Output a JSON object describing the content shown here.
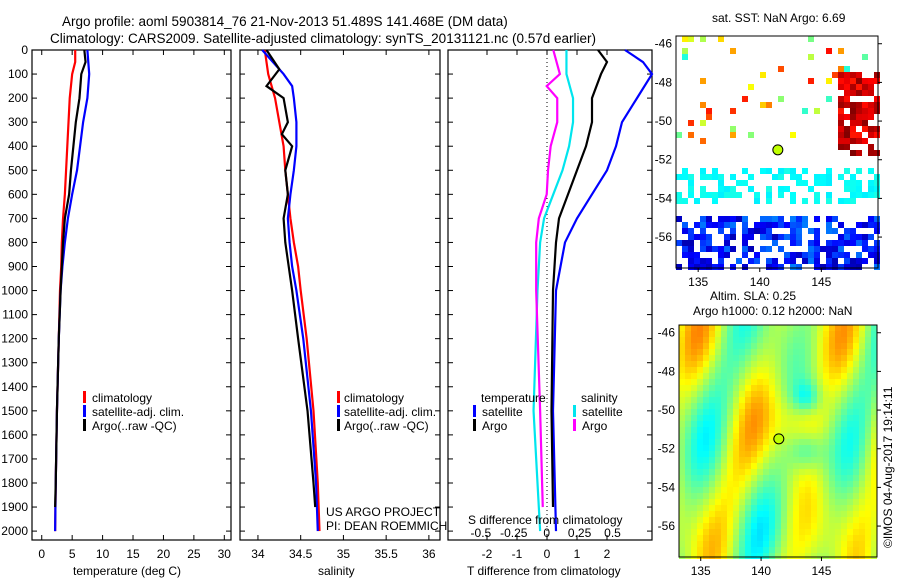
{
  "title_line1": "Argo profile: aoml 5903814_76 21-Nov-2013 51.489S 141.468E (DM data)",
  "title_line2": "Climatology: CARS2009. Satellite-adjusted climatology: synTS_20131121.nc (0.57d earlier)",
  "colors": {
    "clim": "#ff0000",
    "sat": "#0000ff",
    "argo": "#000000",
    "s_sat": "#00e5ee",
    "s_argo": "#ff00ff"
  },
  "depth_ticks": [
    0,
    100,
    200,
    300,
    400,
    500,
    600,
    700,
    800,
    900,
    1000,
    1100,
    1200,
    1300,
    1400,
    1500,
    1600,
    1700,
    1800,
    1900,
    2000
  ],
  "chart_data": [
    {
      "type": "line",
      "name": "temperature",
      "xlabel": "temperature (deg C)",
      "xlim": [
        -1.6,
        31.1
      ],
      "ylim": [
        2037,
        0
      ],
      "xticks": [
        0,
        5,
        10,
        15,
        20,
        25,
        30
      ],
      "legend": [
        "climatology",
        "satellite-adj. clim.",
        "Argo(..raw -QC)"
      ],
      "series": [
        {
          "name": "climatology",
          "key": "clim",
          "depth": [
            0,
            50,
            100,
            200,
            300,
            400,
            500,
            600,
            700,
            800,
            900,
            1000,
            1200,
            1500,
            1800,
            2000
          ],
          "values": [
            5.5,
            5.5,
            5,
            4.6,
            4.4,
            4.2,
            4,
            3.8,
            3.5,
            3.3,
            3.2,
            3.0,
            2.8,
            2.5,
            2.3,
            2.2
          ]
        },
        {
          "name": "satellite-adj. clim.",
          "key": "sat",
          "depth": [
            0,
            100,
            200,
            300,
            400,
            500,
            600,
            700,
            800,
            900,
            1000,
            1200,
            1500,
            1800,
            2000
          ],
          "values": [
            7.5,
            7.8,
            7.5,
            6.8,
            6.3,
            5.8,
            5,
            4.3,
            3.8,
            3.4,
            3.1,
            2.8,
            2.5,
            2.3,
            2.2
          ]
        },
        {
          "name": "Argo(..raw -QC)",
          "key": "argo",
          "depth": [
            0,
            50,
            100,
            200,
            300,
            400,
            500,
            600,
            700,
            800,
            900,
            1000,
            1200,
            1500,
            1800,
            1900
          ],
          "values": [
            7,
            7.2,
            6.5,
            6.2,
            5.6,
            5.2,
            4.8,
            4.5,
            3.8,
            3.5,
            3.3,
            3.1,
            2.8,
            2.5,
            2.3,
            2.2
          ]
        }
      ]
    },
    {
      "type": "line",
      "name": "salinity",
      "xlabel": "salinity",
      "xlim": [
        33.79,
        36.13
      ],
      "ylim": [
        2037,
        0
      ],
      "xticks": [
        34,
        34.5,
        35,
        35.5,
        36
      ],
      "legend": [
        "climatology",
        "satellite-adj. clim.",
        "Argo(..raw -QC)"
      ],
      "annotation": [
        "US ARGO PROJECT",
        "PI: DEAN ROEMMICH"
      ],
      "series": [
        {
          "name": "climatology",
          "key": "clim",
          "depth": [
            0,
            100,
            200,
            300,
            400,
            500,
            600,
            700,
            800,
            900,
            1000,
            1200,
            1500,
            1800,
            2000
          ],
          "values": [
            34.08,
            34.12,
            34.2,
            34.25,
            34.3,
            34.32,
            34.35,
            34.38,
            34.42,
            34.47,
            34.5,
            34.57,
            34.65,
            34.7,
            34.72
          ]
        },
        {
          "name": "satellite-adj. clim.",
          "key": "sat",
          "depth": [
            0,
            100,
            150,
            200,
            300,
            400,
            500,
            600,
            700,
            800,
            900,
            1000,
            1200,
            1500,
            1800,
            2000
          ],
          "values": [
            34.05,
            34.3,
            34.4,
            34.42,
            34.45,
            34.45,
            34.42,
            34.38,
            34.35,
            34.37,
            34.4,
            34.45,
            34.53,
            34.62,
            34.68,
            34.7
          ]
        },
        {
          "name": "Argo(..raw -QC)",
          "key": "argo",
          "depth": [
            0,
            80,
            150,
            200,
            300,
            350,
            400,
            500,
            600,
            700,
            800,
            900,
            1000,
            1200,
            1500,
            1800,
            1900
          ],
          "values": [
            34.1,
            34.25,
            34.1,
            34.3,
            34.35,
            34.28,
            34.4,
            34.32,
            34.35,
            34.3,
            34.32,
            34.36,
            34.4,
            34.47,
            34.58,
            34.65,
            34.67
          ]
        }
      ]
    },
    {
      "type": "line",
      "name": "difference",
      "xlabel": "T difference from climatology",
      "x2label": "S difference from climatology",
      "xlim": [
        -3.3,
        3.5
      ],
      "xticks": [
        -2,
        -1,
        0,
        1,
        2
      ],
      "x2lim": [
        -0.75,
        0.8
      ],
      "x2ticks": [
        "-0.5",
        "-0.25",
        "0",
        "0.25",
        "0.5"
      ],
      "x2tick_values": [
        -0.5,
        -0.25,
        0,
        0.25,
        0.5
      ],
      "ylim": [
        2037,
        0
      ],
      "legend_t": {
        "title": "temperature",
        "items": [
          "satellite",
          "Argo"
        ]
      },
      "legend_s": {
        "title": "salinity",
        "items": [
          "satellite",
          "Argo"
        ]
      },
      "series": [
        {
          "name": "T satellite",
          "key": "sat",
          "axis": "T",
          "depth": [
            0,
            50,
            100,
            200,
            300,
            400,
            500,
            600,
            700,
            800,
            1000,
            1500,
            2000
          ],
          "values": [
            2.6,
            3.2,
            3.5,
            3,
            2.5,
            2.3,
            2,
            1.5,
            1,
            0.6,
            0.3,
            0.2,
            0.3
          ]
        },
        {
          "name": "T Argo",
          "key": "argo",
          "axis": "T",
          "depth": [
            0,
            50,
            100,
            200,
            300,
            400,
            500,
            600,
            700,
            800,
            1000,
            1500,
            1900
          ],
          "values": [
            1.7,
            2,
            1.8,
            1.5,
            1.5,
            1.3,
            1,
            0.7,
            0.4,
            0.3,
            0.2,
            0.15,
            0.2
          ]
        },
        {
          "name": "S satellite",
          "key": "s_sat",
          "axis": "S",
          "depth": [
            0,
            100,
            200,
            300,
            400,
            500,
            600,
            700,
            800,
            1000,
            1500,
            2000
          ],
          "values": [
            0.15,
            0.15,
            0.2,
            0.2,
            0.17,
            0.12,
            0.05,
            -0.02,
            -0.05,
            -0.07,
            -0.1,
            -0.05
          ]
        },
        {
          "name": "S Argo",
          "key": "s_argo",
          "axis": "S",
          "depth": [
            0,
            100,
            150,
            200,
            300,
            400,
            500,
            600,
            700,
            800,
            1000,
            1500,
            1900
          ],
          "values": [
            0.05,
            0.1,
            0,
            0.08,
            0.08,
            0.03,
            0.01,
            0,
            -0.06,
            -0.08,
            -0.08,
            -0.05,
            -0.03
          ]
        }
      ]
    },
    {
      "type": "heatmap",
      "name": "sst-map",
      "title": "sat. SST: NaN Argo: 6.69",
      "xticks": [
        135,
        140,
        145
      ],
      "yticks": [
        -46,
        -48,
        -50,
        -52,
        -54,
        -56
      ],
      "argo_position": [
        141.468,
        -51.489
      ]
    },
    {
      "type": "heatmap",
      "name": "sla-map",
      "title_line1": "Altim. SLA: 0.25",
      "title_line2": "Argo h1000: 0.12 h2000: NaN",
      "xticks": [
        135,
        140,
        145
      ],
      "yticks": [
        -46,
        -48,
        -50,
        -52,
        -54,
        -56
      ],
      "argo_position": [
        141.468,
        -51.489
      ],
      "credit": "©IMOS 04-Aug-2017 19:14:11"
    }
  ]
}
